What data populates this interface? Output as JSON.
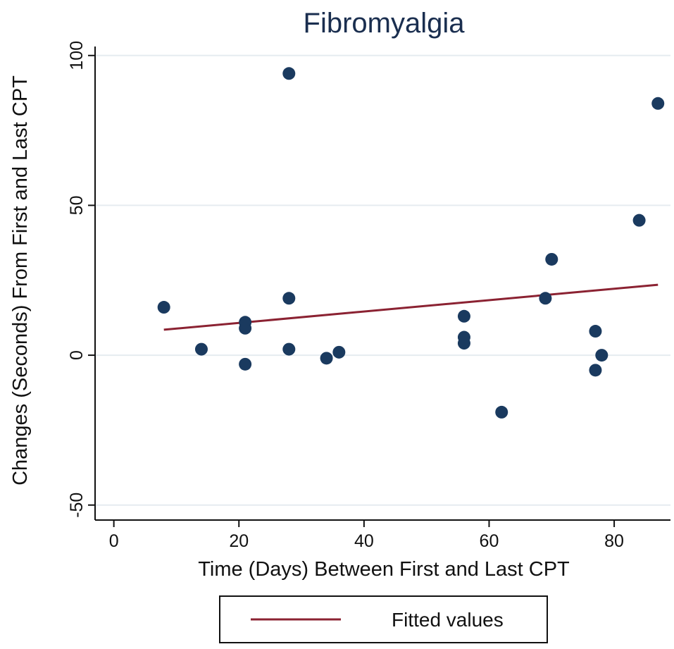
{
  "chart_data": {
    "type": "scatter",
    "title": "Fibromyalgia",
    "xlabel": "Time (Days) Between First and Last CPT",
    "ylabel": "Changes (Seconds) From First and Last CPT",
    "xlim": [
      -3,
      89
    ],
    "ylim": [
      -55,
      103
    ],
    "xticks": [
      0,
      20,
      40,
      60,
      80
    ],
    "yticks": [
      -50,
      0,
      50,
      100
    ],
    "grid": true,
    "points": [
      {
        "x": 8,
        "y": 16
      },
      {
        "x": 14,
        "y": 2
      },
      {
        "x": 21,
        "y": 11
      },
      {
        "x": 21,
        "y": 9
      },
      {
        "x": 21,
        "y": -3
      },
      {
        "x": 28,
        "y": 94
      },
      {
        "x": 28,
        "y": 19
      },
      {
        "x": 28,
        "y": 2
      },
      {
        "x": 34,
        "y": -1
      },
      {
        "x": 36,
        "y": 1
      },
      {
        "x": 56,
        "y": 13
      },
      {
        "x": 56,
        "y": 6
      },
      {
        "x": 56,
        "y": 4
      },
      {
        "x": 62,
        "y": -19
      },
      {
        "x": 69,
        "y": 19
      },
      {
        "x": 70,
        "y": 32
      },
      {
        "x": 77,
        "y": 8
      },
      {
        "x": 77,
        "y": -5
      },
      {
        "x": 78,
        "y": 0
      },
      {
        "x": 84,
        "y": 45
      },
      {
        "x": 87,
        "y": 84
      }
    ],
    "fitted_line": {
      "name": "Fitted values",
      "x": [
        8,
        87
      ],
      "y": [
        8.5,
        23.5
      ]
    },
    "legend": {
      "position": "bottom",
      "entries": [
        "Fitted values"
      ]
    },
    "colors": {
      "marker": "#1a3a5f",
      "fit": "#8b2232",
      "grid": "#e6ecf0",
      "axis": "#111111"
    }
  }
}
